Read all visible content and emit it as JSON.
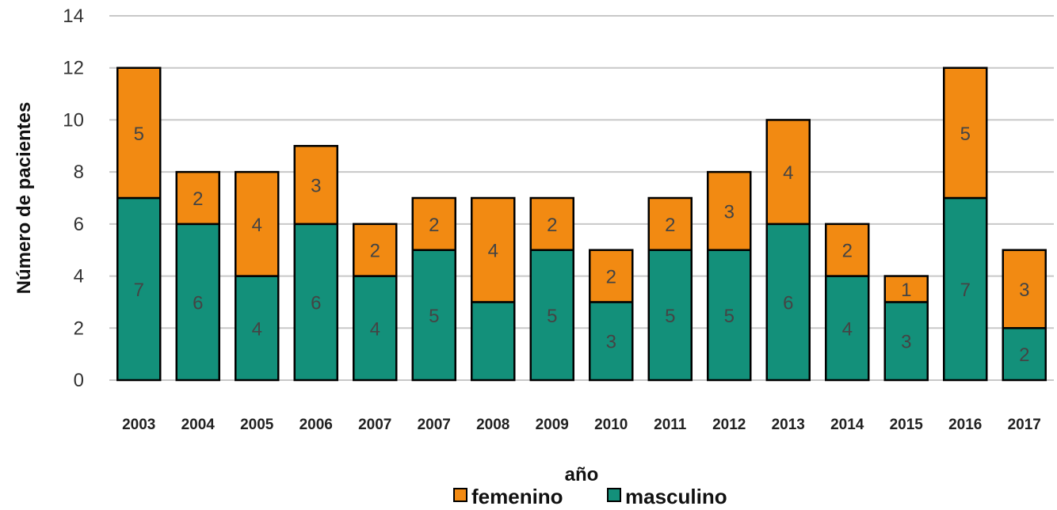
{
  "chart_data": {
    "type": "bar",
    "stacked": true,
    "title": "",
    "xlabel": "año",
    "ylabel": "Número de pacientes",
    "ylim": [
      0,
      14
    ],
    "yticks": [
      0,
      2,
      4,
      6,
      8,
      10,
      12,
      14
    ],
    "grid": true,
    "legend_position": "bottom",
    "categories": [
      "2003",
      "2004",
      "2005",
      "2006",
      "2007",
      "2007",
      "2008",
      "2009",
      "2010",
      "2011",
      "2012",
      "2013",
      "2014",
      "2015",
      "2016",
      "2017"
    ],
    "series": [
      {
        "name": "masculino",
        "color": "#13907a",
        "values": [
          7,
          6,
          4,
          6,
          4,
          5,
          3,
          5,
          3,
          5,
          5,
          6,
          4,
          3,
          7,
          2
        ],
        "labels": [
          "7",
          "6",
          "4",
          "6",
          "4",
          "5",
          "",
          "5",
          "3",
          "5",
          "5",
          "6",
          "4",
          "3",
          "7",
          "2"
        ]
      },
      {
        "name": "femenino",
        "color": "#f28a12",
        "values": [
          5,
          2,
          4,
          3,
          2,
          2,
          4,
          2,
          2,
          2,
          3,
          4,
          2,
          1,
          5,
          3
        ],
        "labels": [
          "5",
          "2",
          "4",
          "3",
          "2",
          "2",
          "4",
          "2",
          "2",
          "2",
          "3",
          "4",
          "2",
          "1",
          "5",
          "3"
        ]
      }
    ],
    "legend_order": [
      "femenino",
      "masculino"
    ]
  }
}
